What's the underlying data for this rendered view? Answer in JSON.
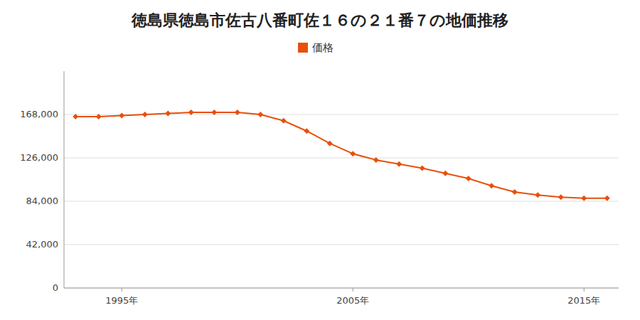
{
  "chart_data": {
    "type": "line",
    "title": "徳島県徳島市佐古八番町佐１６の２１番７の地価推移",
    "x": [
      1993,
      1994,
      1995,
      1996,
      1997,
      1998,
      1999,
      2000,
      2001,
      2002,
      2003,
      2004,
      2005,
      2006,
      2007,
      2008,
      2009,
      2010,
      2011,
      2012,
      2013,
      2014,
      2015,
      2016
    ],
    "series": [
      {
        "name": "価格",
        "color": "#E8500A",
        "marker": "diamond",
        "values": [
          166000,
          166000,
          167000,
          168000,
          169000,
          170000,
          170000,
          170000,
          168000,
          162000,
          152000,
          140000,
          130000,
          124000,
          120000,
          116000,
          111000,
          106000,
          99000,
          93000,
          90000,
          88000,
          87000,
          87000
        ]
      }
    ],
    "xlim": [
      1992.5,
      2016.5
    ],
    "xticks": [
      {
        "value": 1995,
        "label": "1995年"
      },
      {
        "value": 2005,
        "label": "2005年"
      },
      {
        "value": 2015,
        "label": "2015年"
      }
    ],
    "ylim": [
      0,
      210000
    ],
    "yticks": [
      0,
      {
        "value": 42000,
        "label": "42,000"
      },
      {
        "value": 84000,
        "label": "84,000"
      },
      {
        "value": 126000,
        "label": "126,000"
      },
      {
        "value": 168000,
        "label": "168,000"
      }
    ],
    "grid": true,
    "legend": "top"
  }
}
